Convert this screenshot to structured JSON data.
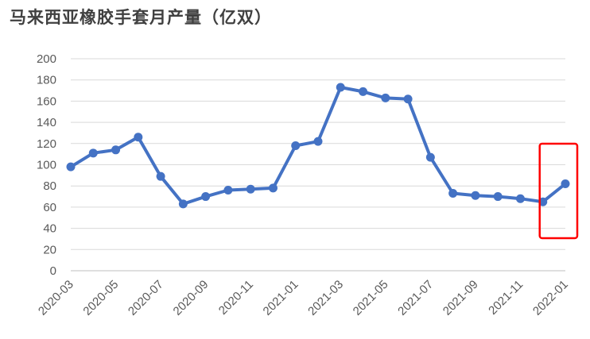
{
  "chart_data": {
    "type": "line",
    "title": "马来西亚橡胶手套月产量（亿双）",
    "ylim": [
      0,
      200
    ],
    "yticks": [
      0,
      20,
      40,
      60,
      80,
      100,
      120,
      140,
      160,
      180,
      200
    ],
    "grid": true,
    "categories": [
      "2020-03",
      "2020-04",
      "2020-05",
      "2020-06",
      "2020-07",
      "2020-08",
      "2020-09",
      "2020-10",
      "2020-11",
      "2020-12",
      "2021-01",
      "2021-02",
      "2021-03",
      "2021-04",
      "2021-05",
      "2021-06",
      "2021-07",
      "2021-08",
      "2021-09",
      "2021-10",
      "2021-11",
      "2021-12",
      "2022-01"
    ],
    "tick_labels": [
      "2020-03",
      "2020-05",
      "2020-07",
      "2020-09",
      "2020-11",
      "2021-01",
      "2021-03",
      "2021-05",
      "2021-07",
      "2021-09",
      "2021-11",
      "2022-01"
    ],
    "series": [
      {
        "color": "#4472C4",
        "values": [
          98,
          111,
          114,
          126,
          89,
          63,
          70,
          76,
          77,
          78,
          118,
          122,
          173,
          169,
          163,
          162,
          107,
          73,
          71,
          70,
          68,
          65,
          82
        ]
      }
    ],
    "highlight": {
      "from": "2021-12",
      "to": "2022-01",
      "color": "#FF0000"
    }
  }
}
